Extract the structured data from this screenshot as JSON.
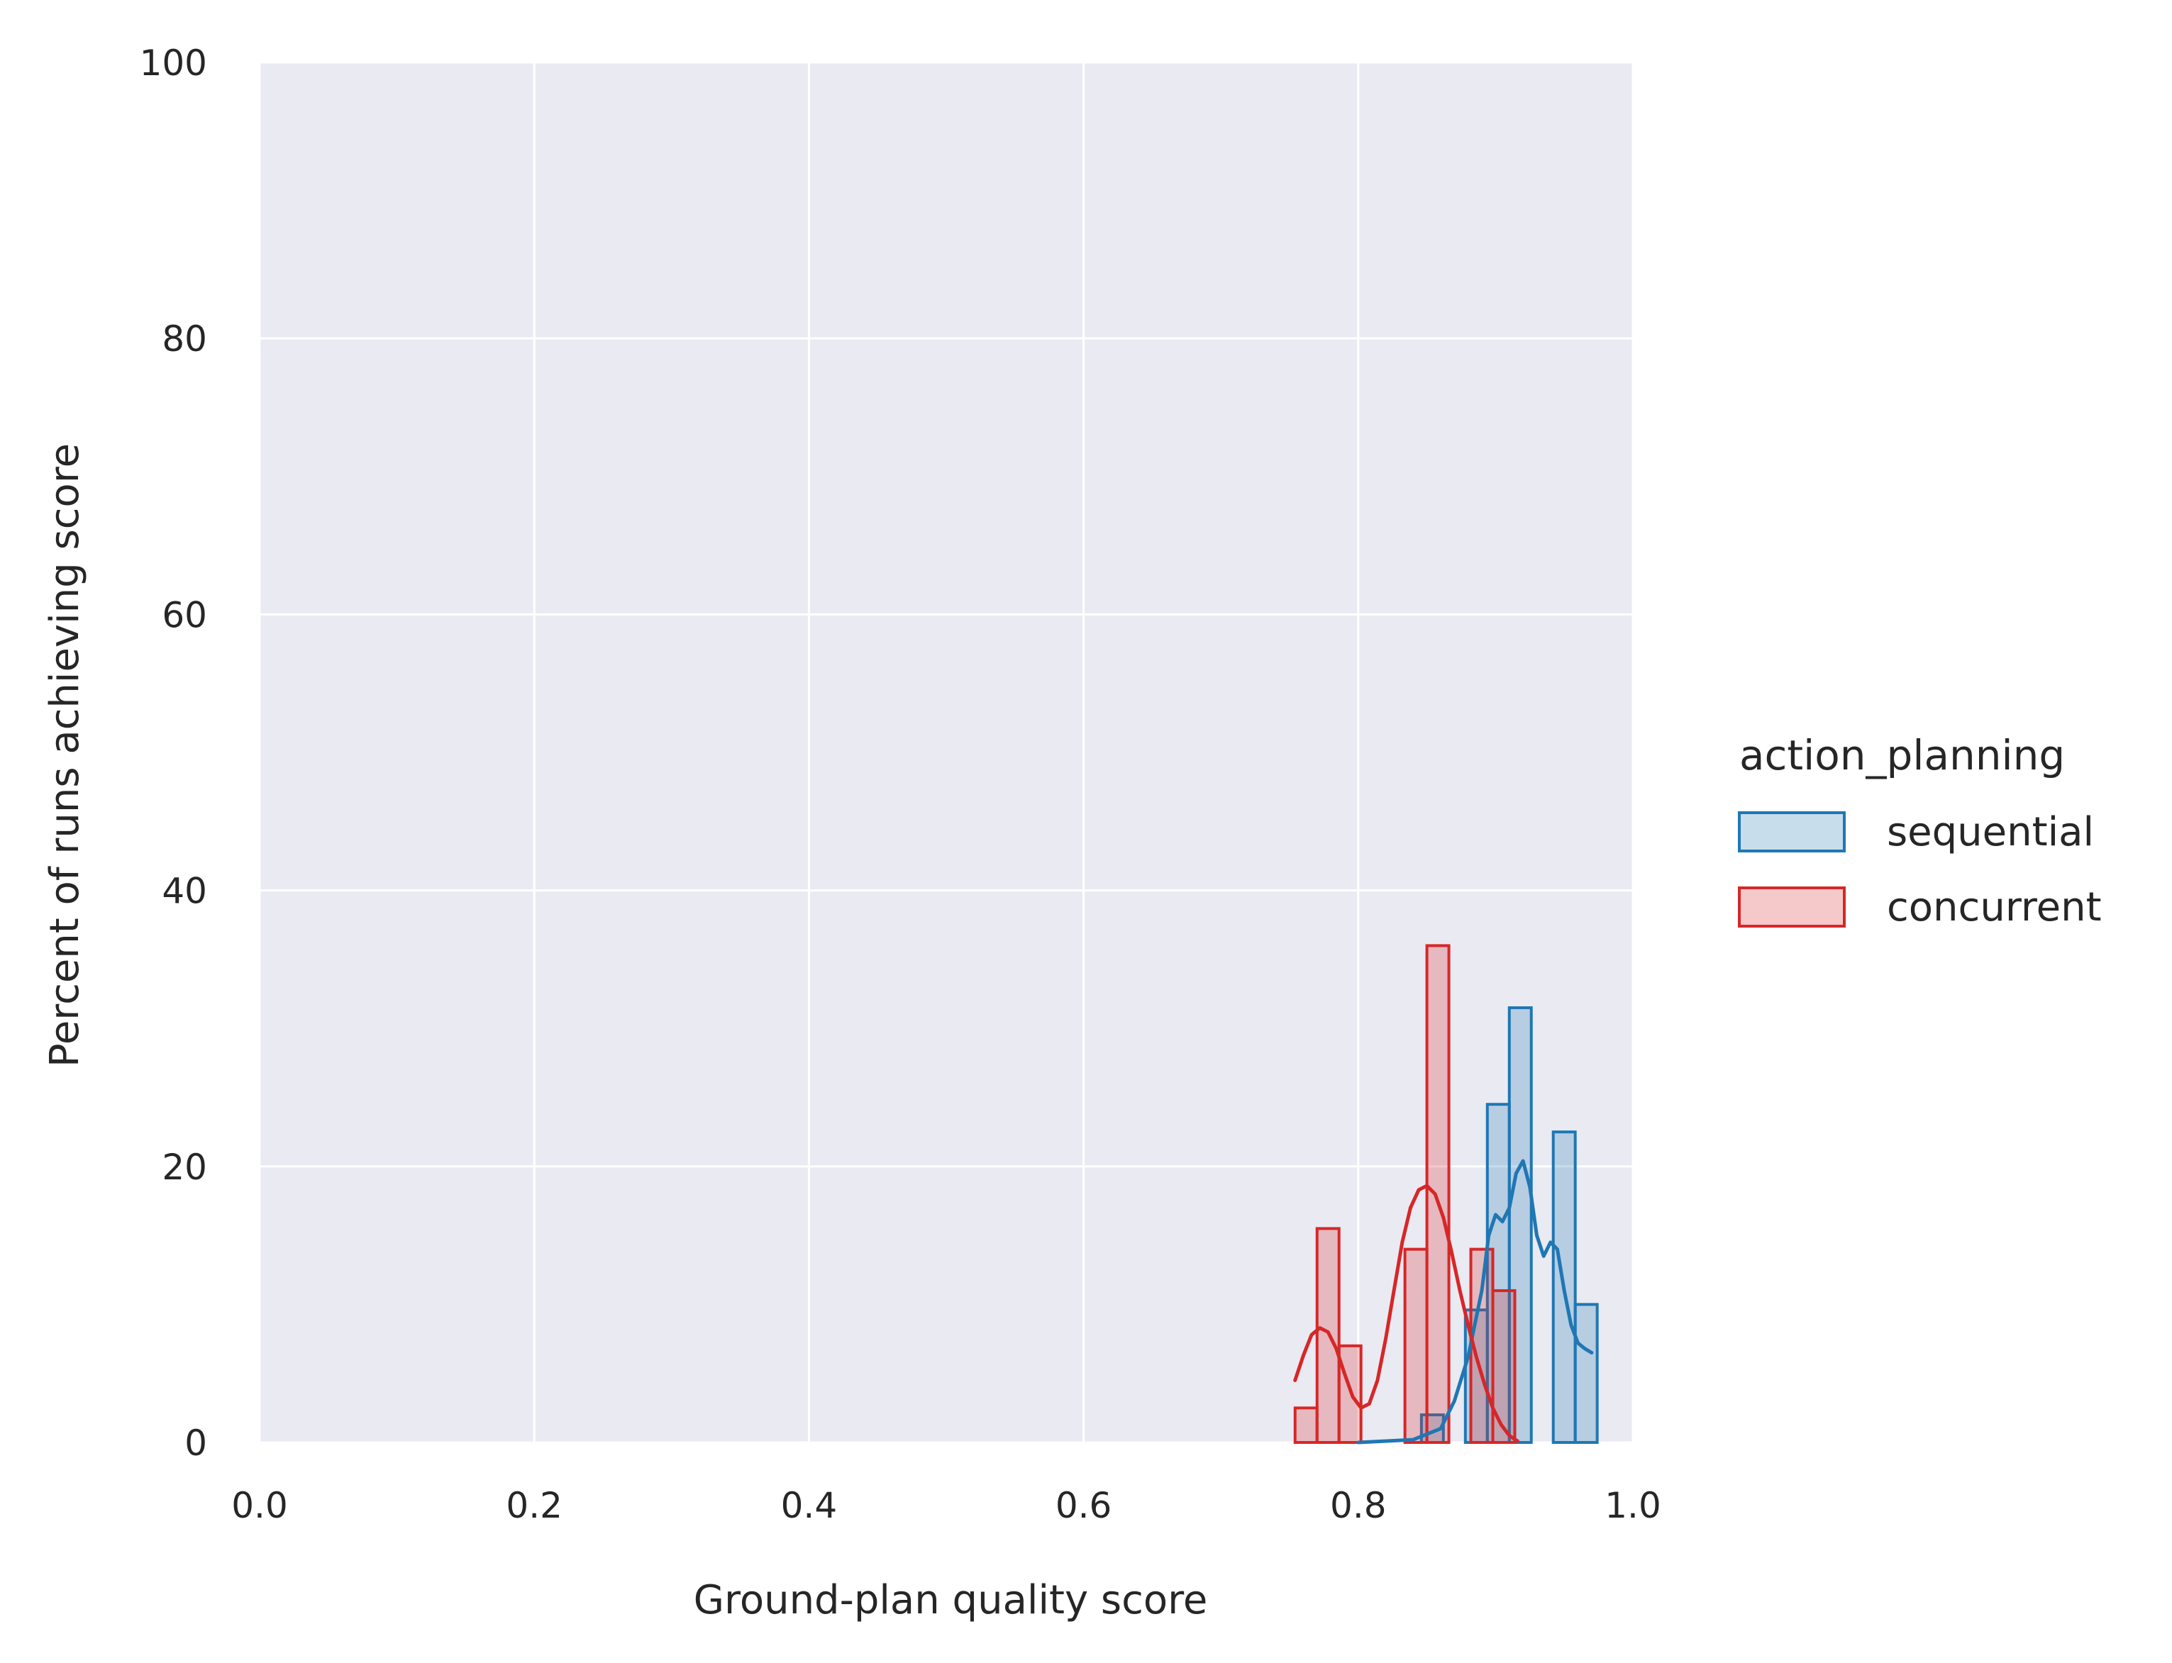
{
  "colors": {
    "plot_background": "#eaeaf2",
    "grid": "#ffffff",
    "text": "#262626",
    "sequential": "#1f77b4",
    "concurrent": "#d62728"
  },
  "chart_data": {
    "type": "histogram",
    "title": "",
    "xlabel": "Ground-plan quality score",
    "ylabel": "Percent of runs achieving score",
    "xlim": [
      0.0,
      1.0
    ],
    "ylim": [
      0,
      100
    ],
    "x_ticks": [
      "0.0",
      "0.2",
      "0.4",
      "0.6",
      "0.8",
      "1.0"
    ],
    "y_ticks": [
      "0",
      "20",
      "40",
      "60",
      "80",
      "100"
    ],
    "grid": true,
    "legend": {
      "title": "action_planning",
      "placement": "right",
      "entries": [
        "sequential",
        "concurrent"
      ]
    },
    "series": [
      {
        "name": "sequential",
        "color": "#1f77b4",
        "bins": [
          {
            "x0": 0.846,
            "x1": 0.862,
            "value": 2
          },
          {
            "x0": 0.862,
            "x1": 0.878,
            "value": 0
          },
          {
            "x0": 0.878,
            "x1": 0.894,
            "value": 9.6
          },
          {
            "x0": 0.894,
            "x1": 0.91,
            "value": 24.5
          },
          {
            "x0": 0.91,
            "x1": 0.926,
            "value": 31.5
          },
          {
            "x0": 0.926,
            "x1": 0.942,
            "value": 0
          },
          {
            "x0": 0.942,
            "x1": 0.958,
            "value": 22.5
          },
          {
            "x0": 0.958,
            "x1": 0.974,
            "value": 10
          }
        ],
        "kde": [
          [
            0.8,
            0.0
          ],
          [
            0.84,
            0.2
          ],
          [
            0.86,
            1.0
          ],
          [
            0.87,
            3.0
          ],
          [
            0.88,
            6.2
          ],
          [
            0.89,
            11.0
          ],
          [
            0.895,
            15.0
          ],
          [
            0.9,
            16.5
          ],
          [
            0.905,
            16.0
          ],
          [
            0.91,
            17.0
          ],
          [
            0.915,
            19.5
          ],
          [
            0.92,
            20.4
          ],
          [
            0.925,
            18.5
          ],
          [
            0.93,
            15.0
          ],
          [
            0.935,
            13.5
          ],
          [
            0.94,
            14.5
          ],
          [
            0.945,
            14.0
          ],
          [
            0.95,
            11.0
          ],
          [
            0.955,
            8.5
          ],
          [
            0.96,
            7.2
          ],
          [
            0.965,
            6.8
          ],
          [
            0.97,
            6.5
          ]
        ]
      },
      {
        "name": "concurrent",
        "color": "#d62728",
        "bins": [
          {
            "x0": 0.754,
            "x1": 0.77,
            "value": 2.5
          },
          {
            "x0": 0.77,
            "x1": 0.786,
            "value": 15.5
          },
          {
            "x0": 0.786,
            "x1": 0.802,
            "value": 7
          },
          {
            "x0": 0.802,
            "x1": 0.818,
            "value": 0
          },
          {
            "x0": 0.818,
            "x1": 0.834,
            "value": 0
          },
          {
            "x0": 0.834,
            "x1": 0.85,
            "value": 14
          },
          {
            "x0": 0.85,
            "x1": 0.866,
            "value": 36
          },
          {
            "x0": 0.866,
            "x1": 0.882,
            "value": 0
          },
          {
            "x0": 0.882,
            "x1": 0.898,
            "value": 14
          },
          {
            "x0": 0.898,
            "x1": 0.914,
            "value": 11
          }
        ],
        "kde": [
          [
            0.754,
            4.5
          ],
          [
            0.76,
            6.3
          ],
          [
            0.766,
            7.8
          ],
          [
            0.772,
            8.3
          ],
          [
            0.778,
            8.0
          ],
          [
            0.784,
            6.8
          ],
          [
            0.79,
            5.0
          ],
          [
            0.796,
            3.3
          ],
          [
            0.802,
            2.5
          ],
          [
            0.808,
            2.8
          ],
          [
            0.814,
            4.5
          ],
          [
            0.82,
            7.5
          ],
          [
            0.826,
            11.0
          ],
          [
            0.832,
            14.5
          ],
          [
            0.838,
            17.0
          ],
          [
            0.844,
            18.3
          ],
          [
            0.85,
            18.6
          ],
          [
            0.856,
            18.0
          ],
          [
            0.862,
            16.3
          ],
          [
            0.868,
            13.8
          ],
          [
            0.874,
            11.0
          ],
          [
            0.88,
            8.5
          ],
          [
            0.886,
            6.2
          ],
          [
            0.892,
            4.2
          ],
          [
            0.898,
            2.5
          ],
          [
            0.904,
            1.3
          ],
          [
            0.91,
            0.5
          ],
          [
            0.916,
            0.1
          ]
        ]
      }
    ]
  }
}
